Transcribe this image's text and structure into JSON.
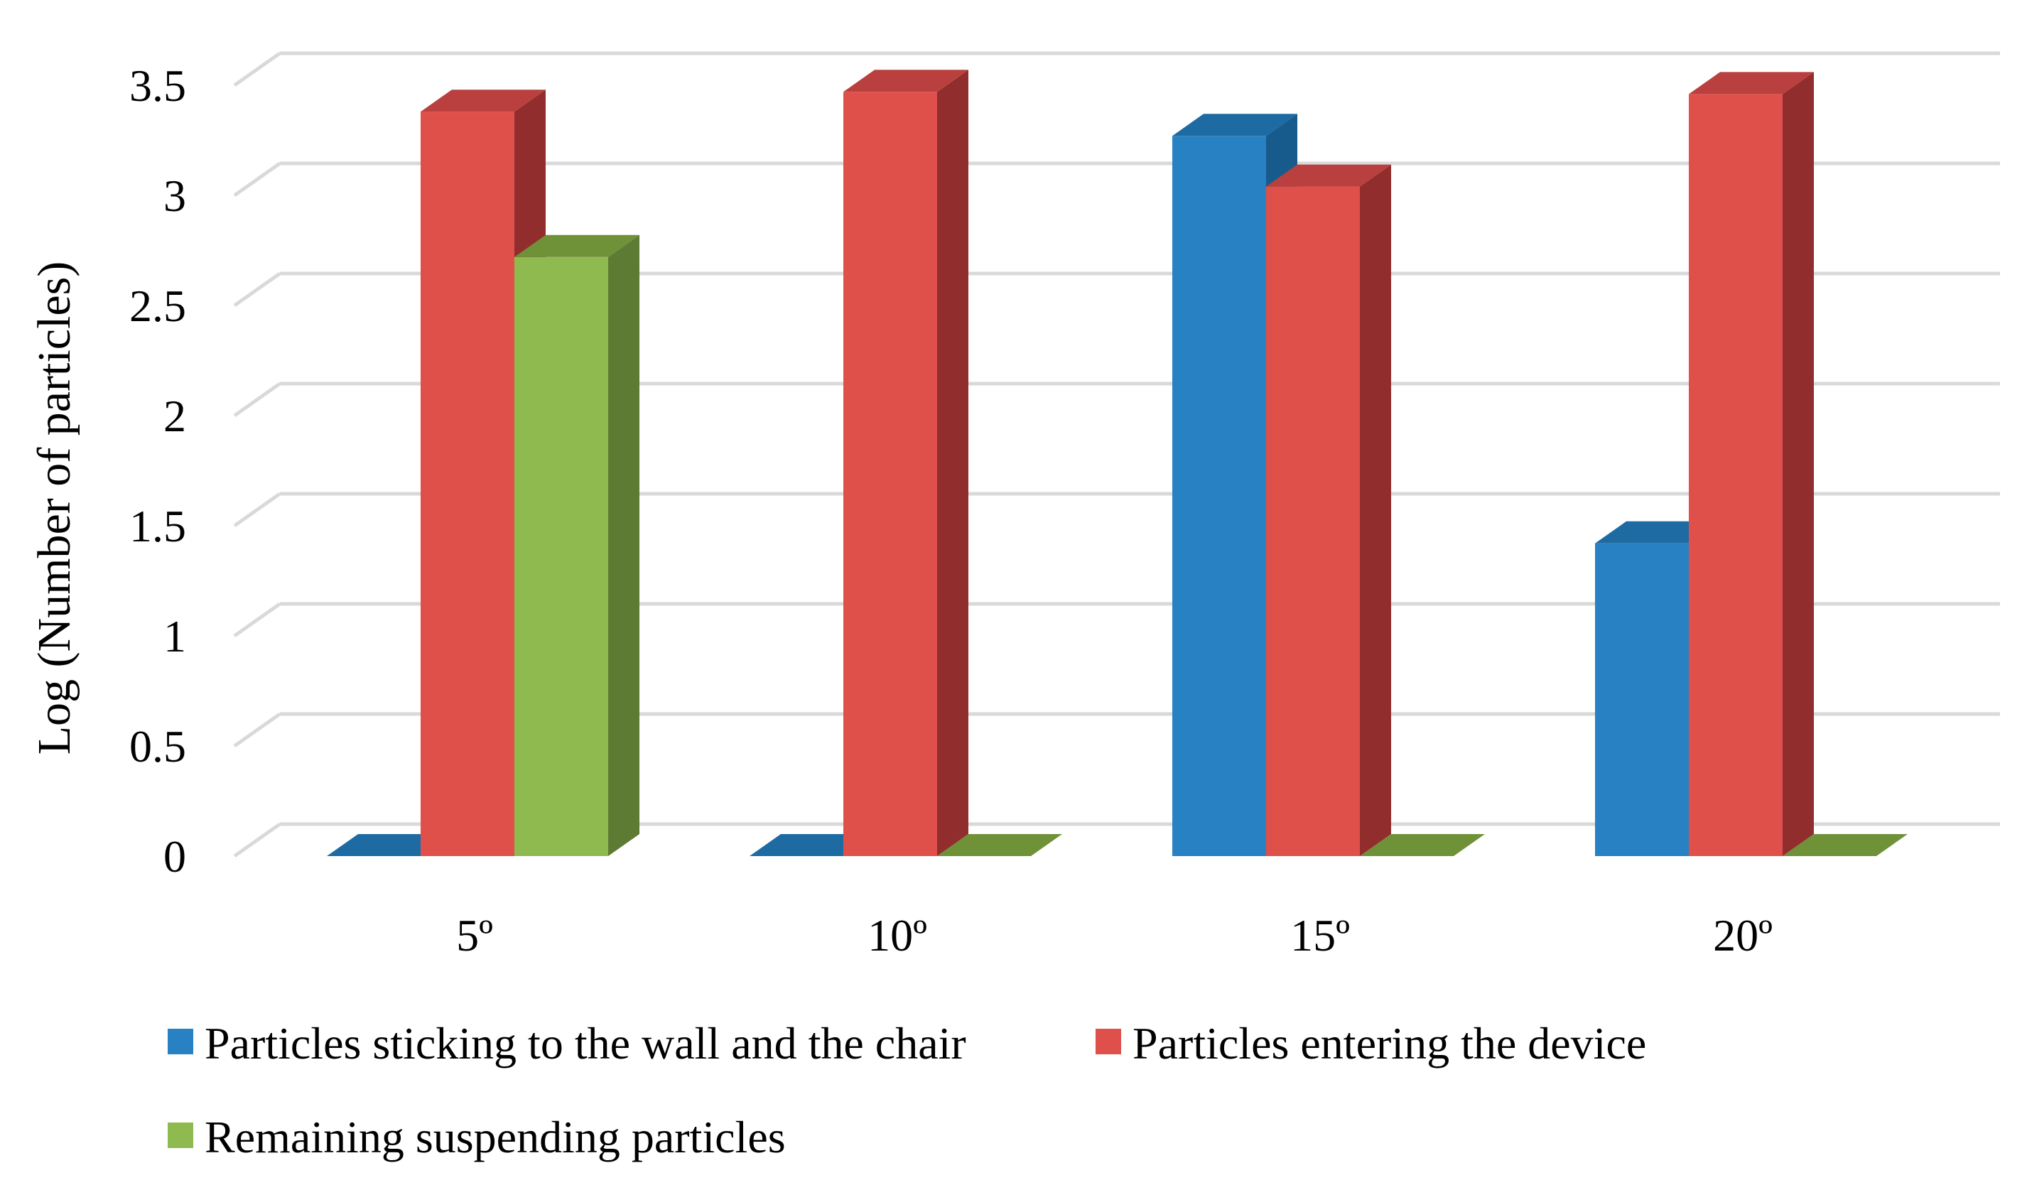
{
  "chart_data": {
    "type": "bar",
    "style": "3d-clustered-column",
    "categories": [
      "5º",
      "10º",
      "15º",
      "20º"
    ],
    "series": [
      {
        "name": "Particles sticking to the wall and the chair",
        "values": [
          0,
          0,
          3.27,
          1.42
        ],
        "color": "#2781c2",
        "side_color": "#175b8c",
        "top_color": "#1e6aa3"
      },
      {
        "name": "Particles entering the device",
        "values": [
          3.38,
          3.47,
          3.04,
          3.46
        ],
        "color": "#e0504b",
        "side_color": "#922d2e",
        "top_color": "#b9403e"
      },
      {
        "name": "Remaining suspending particles",
        "values": [
          2.72,
          0,
          0,
          0
        ],
        "color": "#8fba4f",
        "side_color": "#5e7b34",
        "top_color": "#6f9138"
      }
    ],
    "y_ticks": [
      "0",
      "0.5",
      "1",
      "1.5",
      "2",
      "2.5",
      "3",
      "3.5"
    ],
    "ylim": [
      0,
      3.5
    ],
    "title": "",
    "xlabel": "",
    "ylabel": "Log (Number of particles)",
    "grid": true,
    "legend_position": "bottom"
  }
}
